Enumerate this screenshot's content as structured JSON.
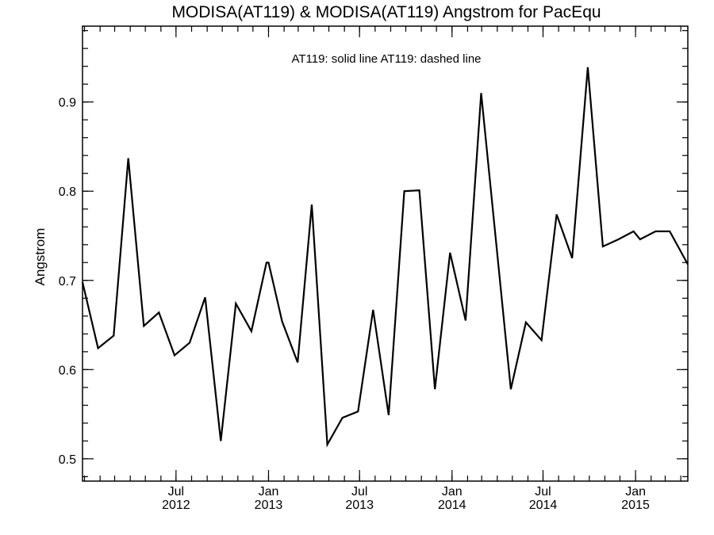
{
  "chart_data": {
    "type": "line",
    "title": "MODISA(AT119) & MODISA(AT119)  Angstrom for PacEqu",
    "annotation": "AT119: solid line   AT119: dashed line",
    "xlabel": "",
    "ylabel": "Angstrom",
    "xlim": [
      "2011-12-28",
      "2015-04-15"
    ],
    "ylim": [
      0.475,
      0.985
    ],
    "x_ticks": [
      {
        "date": "2012-07-01",
        "line1": "Jul",
        "line2": "2012"
      },
      {
        "date": "2013-01-01",
        "line1": "Jan",
        "line2": "2013"
      },
      {
        "date": "2013-07-01",
        "line1": "Jul",
        "line2": "2013"
      },
      {
        "date": "2014-01-01",
        "line1": "Jan",
        "line2": "2014"
      },
      {
        "date": "2014-07-01",
        "line1": "Jul",
        "line2": "2014"
      },
      {
        "date": "2015-01-01",
        "line1": "Jan",
        "line2": "2015"
      }
    ],
    "y_ticks": [
      "0.5",
      "0.6",
      "0.7",
      "0.8",
      "0.9"
    ],
    "grid": false,
    "series": [
      {
        "style": "solid",
        "color": "#000000",
        "x": [
          "2011-12-28",
          "2012-01-28",
          "2012-02-28",
          "2012-03-28",
          "2012-04-28",
          "2012-05-28",
          "2012-06-28",
          "2012-07-28",
          "2012-08-28",
          "2012-09-28",
          "2012-10-28",
          "2012-11-28",
          "2012-12-28",
          "2013-01-01",
          "2013-01-28",
          "2013-02-28",
          "2013-03-28",
          "2013-04-28",
          "2013-05-28",
          "2013-06-28",
          "2013-07-28",
          "2013-08-28",
          "2013-09-28",
          "2013-10-28",
          "2013-11-28",
          "2013-12-28",
          "2014-01-28",
          "2014-02-28",
          "2014-03-28",
          "2014-04-28",
          "2014-05-28",
          "2014-06-28",
          "2014-07-28",
          "2014-08-28",
          "2014-09-28",
          "2014-10-28",
          "2014-11-28",
          "2014-12-28",
          "2015-01-10",
          "2015-02-10",
          "2015-03-10",
          "2015-04-15"
        ],
        "y": [
          0.698,
          0.624,
          0.638,
          0.837,
          0.649,
          0.664,
          0.616,
          0.63,
          0.681,
          0.52,
          0.674,
          0.643,
          0.72,
          0.72,
          0.654,
          0.608,
          0.785,
          0.516,
          0.546,
          0.553,
          0.667,
          0.549,
          0.8,
          0.801,
          0.578,
          0.731,
          0.655,
          0.91,
          0.752,
          0.578,
          0.653,
          0.633,
          0.774,
          0.725,
          0.939,
          0.738,
          0.746,
          0.755,
          0.746,
          0.755,
          0.755,
          0.718
        ]
      }
    ]
  }
}
